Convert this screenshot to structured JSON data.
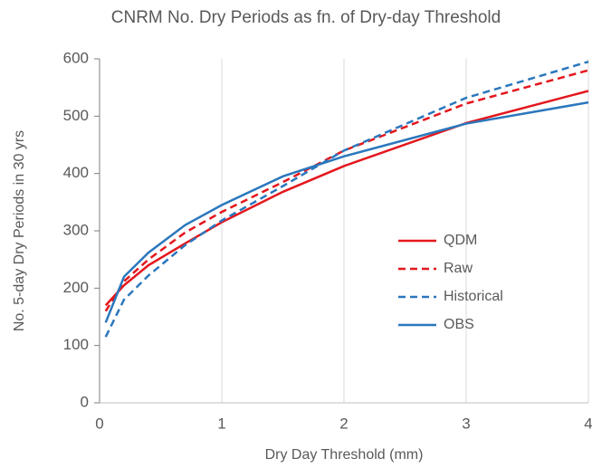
{
  "chart_data": {
    "type": "line",
    "title": "CNRM No. Dry Periods as fn. of Dry-day Threshold",
    "x_label": "Dry Day Threshold (mm)",
    "y_label": "No. 5-day Dry Periods in 30 yrs",
    "x": [
      0.05,
      0.2,
      0.4,
      0.7,
      1,
      1.5,
      2,
      3,
      4
    ],
    "series": [
      {
        "name": "QDM",
        "color": "#e3171d",
        "style": "solid",
        "values": [
          170,
          205,
          240,
          278,
          315,
          368,
          413,
          488,
          544
        ]
      },
      {
        "name": "Raw",
        "color": "#e3171d",
        "style": "dashed",
        "values": [
          160,
          212,
          250,
          297,
          333,
          385,
          440,
          522,
          580
        ]
      },
      {
        "name": "Historical",
        "color": "#2b77bd",
        "style": "dashed",
        "values": [
          115,
          180,
          222,
          275,
          318,
          378,
          440,
          532,
          595
        ]
      },
      {
        "name": "OBS",
        "color": "#2b77bd",
        "style": "solid",
        "values": [
          140,
          220,
          262,
          310,
          345,
          395,
          430,
          487,
          524
        ]
      }
    ],
    "xlim": [
      0,
      4
    ],
    "xticks": [
      0,
      1,
      2,
      3,
      4
    ],
    "ylim": [
      0,
      600
    ],
    "yticks": [
      0,
      100,
      200,
      300,
      400,
      500,
      600
    ],
    "grid": "x",
    "legend": "right"
  }
}
